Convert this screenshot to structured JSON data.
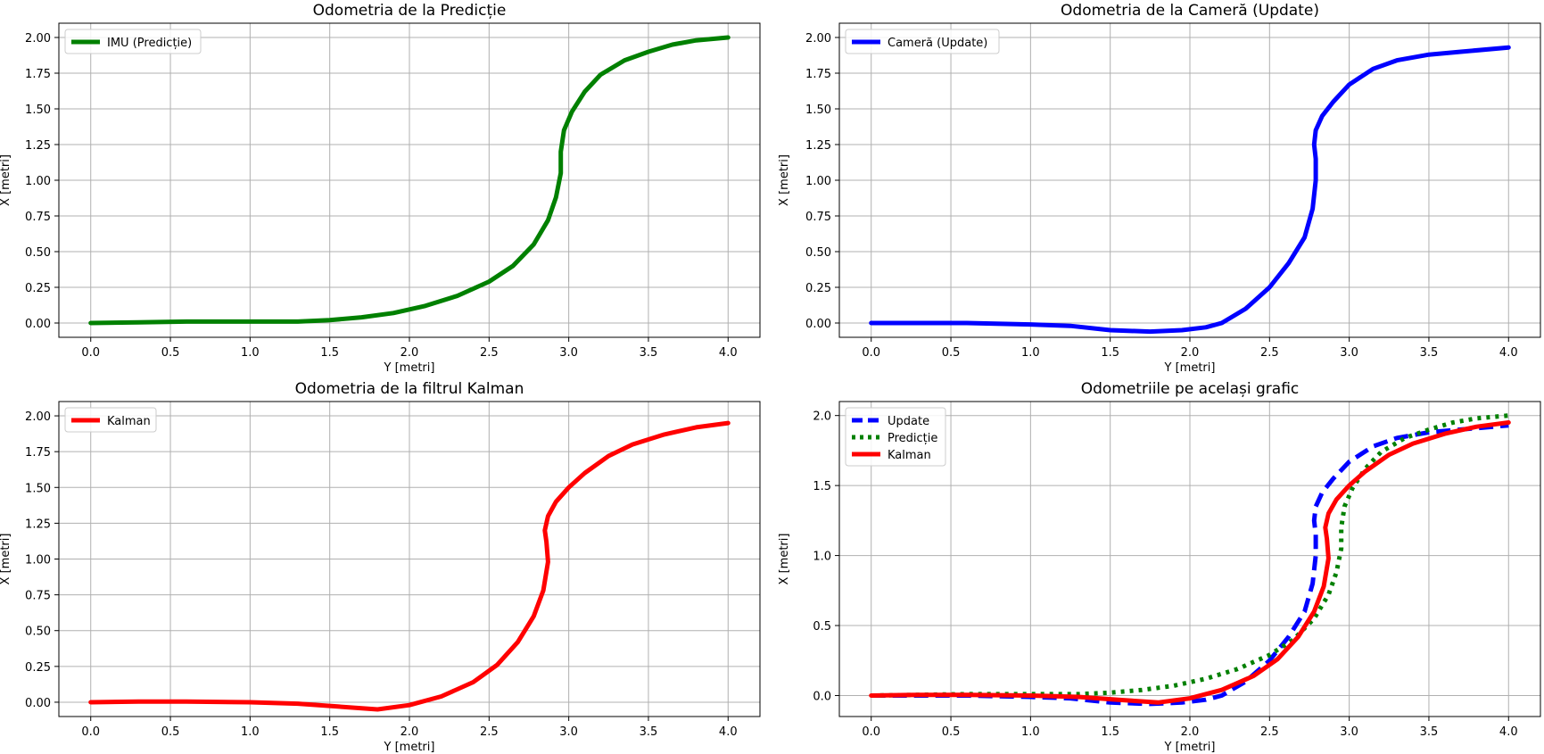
{
  "colors": {
    "imu": "#008000",
    "camera": "#0000ff",
    "kalman": "#ff0000",
    "grid": "#b0b0b0",
    "axes": "#000000"
  },
  "chart_data": [
    {
      "type": "line",
      "title": "Odometria de la Predicție",
      "xlabel": "Y [metri]",
      "ylabel": "X [metri]",
      "xlim": [
        -0.2,
        4.2
      ],
      "ylim": [
        -0.1,
        2.1
      ],
      "xticks": [
        "0.0",
        "0.5",
        "1.0",
        "1.5",
        "2.0",
        "2.5",
        "3.0",
        "3.5",
        "4.0"
      ],
      "yticks": [
        "0.00",
        "0.25",
        "0.50",
        "0.75",
        "1.00",
        "1.25",
        "1.50",
        "1.75",
        "2.00"
      ],
      "grid": true,
      "legend": "upper-left",
      "series": [
        {
          "name": "IMU (Predicție)",
          "color": "#008000",
          "style": "solid",
          "x": [
            0.0,
            0.3,
            0.6,
            1.0,
            1.3,
            1.5,
            1.7,
            1.9,
            2.1,
            2.3,
            2.5,
            2.65,
            2.78,
            2.87,
            2.92,
            2.95,
            2.95,
            2.97,
            3.02,
            3.1,
            3.2,
            3.35,
            3.5,
            3.65,
            3.8,
            4.0
          ],
          "y": [
            0.0,
            0.005,
            0.01,
            0.01,
            0.01,
            0.02,
            0.04,
            0.07,
            0.12,
            0.19,
            0.29,
            0.4,
            0.55,
            0.72,
            0.88,
            1.05,
            1.2,
            1.35,
            1.48,
            1.62,
            1.74,
            1.84,
            1.9,
            1.95,
            1.98,
            2.0
          ]
        }
      ]
    },
    {
      "type": "line",
      "title": "Odometria de la Cameră (Update)",
      "xlabel": "Y [metri]",
      "ylabel": "X [metri]",
      "xlim": [
        -0.2,
        4.2
      ],
      "ylim": [
        -0.1,
        2.1
      ],
      "xticks": [
        "0.0",
        "0.5",
        "1.0",
        "1.5",
        "2.0",
        "2.5",
        "3.0",
        "3.5",
        "4.0"
      ],
      "yticks": [
        "0.00",
        "0.25",
        "0.50",
        "0.75",
        "1.00",
        "1.25",
        "1.50",
        "1.75",
        "2.00"
      ],
      "grid": true,
      "legend": "upper-left",
      "series": [
        {
          "name": "Cameră (Update)",
          "color": "#0000ff",
          "style": "solid",
          "x": [
            0.0,
            0.3,
            0.6,
            1.0,
            1.25,
            1.5,
            1.75,
            1.95,
            2.1,
            2.2,
            2.35,
            2.5,
            2.62,
            2.72,
            2.77,
            2.79,
            2.79,
            2.78,
            2.79,
            2.83,
            2.9,
            3.0,
            3.15,
            3.3,
            3.5,
            3.7,
            4.0
          ],
          "y": [
            0.0,
            0.0,
            0.0,
            -0.01,
            -0.02,
            -0.05,
            -0.06,
            -0.05,
            -0.03,
            0.0,
            0.1,
            0.25,
            0.42,
            0.6,
            0.8,
            1.0,
            1.15,
            1.25,
            1.35,
            1.45,
            1.55,
            1.67,
            1.78,
            1.84,
            1.88,
            1.9,
            1.93
          ]
        }
      ]
    },
    {
      "type": "line",
      "title": "Odometria de la filtrul Kalman",
      "xlabel": "Y [metri]",
      "ylabel": "X [metri]",
      "xlim": [
        -0.2,
        4.2
      ],
      "ylim": [
        -0.1,
        2.1
      ],
      "xticks": [
        "0.0",
        "0.5",
        "1.0",
        "1.5",
        "2.0",
        "2.5",
        "3.0",
        "3.5",
        "4.0"
      ],
      "yticks": [
        "0.00",
        "0.25",
        "0.50",
        "0.75",
        "1.00",
        "1.25",
        "1.50",
        "1.75",
        "2.00"
      ],
      "grid": true,
      "legend": "upper-left",
      "series": [
        {
          "name": "Kalman",
          "color": "#ff0000",
          "style": "solid",
          "x": [
            0.0,
            0.3,
            0.6,
            1.0,
            1.3,
            1.55,
            1.8,
            2.0,
            2.2,
            2.4,
            2.55,
            2.68,
            2.78,
            2.84,
            2.87,
            2.86,
            2.85,
            2.87,
            2.92,
            3.0,
            3.1,
            3.25,
            3.4,
            3.6,
            3.8,
            4.0
          ],
          "y": [
            0.0,
            0.005,
            0.005,
            0.0,
            -0.01,
            -0.03,
            -0.05,
            -0.02,
            0.04,
            0.14,
            0.26,
            0.42,
            0.6,
            0.78,
            0.98,
            1.12,
            1.2,
            1.3,
            1.4,
            1.5,
            1.6,
            1.72,
            1.8,
            1.87,
            1.92,
            1.95
          ]
        }
      ]
    },
    {
      "type": "line",
      "title": "Odometriile pe același grafic",
      "xlabel": "Y [metri]",
      "ylabel": "X [metri]",
      "xlim": [
        -0.2,
        4.2
      ],
      "ylim": [
        -0.15,
        2.1
      ],
      "xticks": [
        "0.0",
        "0.5",
        "1.0",
        "1.5",
        "2.0",
        "2.5",
        "3.0",
        "3.5",
        "4.0"
      ],
      "yticks": [
        "0.0",
        "0.5",
        "1.0",
        "1.5",
        "2.0"
      ],
      "grid": true,
      "legend": "upper-left",
      "series": [
        {
          "name": "Update",
          "color": "#0000ff",
          "style": "dashed",
          "x": [
            0.0,
            0.3,
            0.6,
            1.0,
            1.25,
            1.5,
            1.75,
            1.95,
            2.1,
            2.2,
            2.35,
            2.5,
            2.62,
            2.72,
            2.77,
            2.79,
            2.79,
            2.78,
            2.79,
            2.83,
            2.9,
            3.0,
            3.15,
            3.3,
            3.5,
            3.7,
            4.0
          ],
          "y": [
            0.0,
            0.0,
            0.0,
            -0.01,
            -0.02,
            -0.05,
            -0.06,
            -0.05,
            -0.03,
            0.0,
            0.1,
            0.25,
            0.42,
            0.6,
            0.8,
            1.0,
            1.15,
            1.25,
            1.35,
            1.45,
            1.55,
            1.67,
            1.78,
            1.84,
            1.88,
            1.9,
            1.93
          ]
        },
        {
          "name": "Predicție",
          "color": "#008000",
          "style": "dotted",
          "x": [
            0.0,
            0.3,
            0.6,
            1.0,
            1.3,
            1.5,
            1.7,
            1.9,
            2.1,
            2.3,
            2.5,
            2.65,
            2.78,
            2.87,
            2.92,
            2.95,
            2.95,
            2.97,
            3.02,
            3.1,
            3.2,
            3.35,
            3.5,
            3.65,
            3.8,
            4.0
          ],
          "y": [
            0.0,
            0.005,
            0.01,
            0.01,
            0.01,
            0.02,
            0.04,
            0.07,
            0.12,
            0.19,
            0.29,
            0.4,
            0.55,
            0.72,
            0.88,
            1.05,
            1.2,
            1.35,
            1.48,
            1.62,
            1.74,
            1.84,
            1.9,
            1.95,
            1.98,
            2.0
          ]
        },
        {
          "name": "Kalman",
          "color": "#ff0000",
          "style": "solid",
          "x": [
            0.0,
            0.3,
            0.6,
            1.0,
            1.3,
            1.55,
            1.8,
            2.0,
            2.2,
            2.4,
            2.55,
            2.68,
            2.78,
            2.84,
            2.87,
            2.86,
            2.85,
            2.87,
            2.92,
            3.0,
            3.1,
            3.25,
            3.4,
            3.6,
            3.8,
            4.0
          ],
          "y": [
            0.0,
            0.005,
            0.005,
            0.0,
            -0.01,
            -0.03,
            -0.05,
            -0.02,
            0.04,
            0.14,
            0.26,
            0.42,
            0.6,
            0.78,
            0.98,
            1.12,
            1.2,
            1.3,
            1.4,
            1.5,
            1.6,
            1.72,
            1.8,
            1.87,
            1.92,
            1.95
          ]
        }
      ]
    }
  ]
}
